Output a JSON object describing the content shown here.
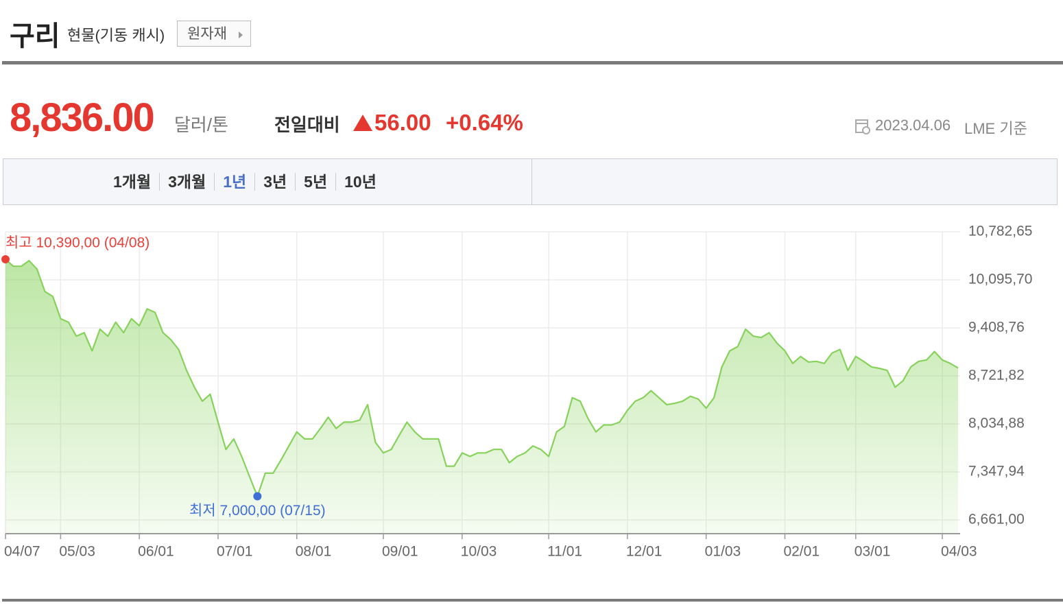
{
  "header": {
    "title": "구리",
    "subtitle": "현물(기동 캐시)",
    "button": "원자재"
  },
  "quote": {
    "price": "8,836.00",
    "unit": "달러/톤",
    "change_label": "전일대비",
    "change": "56.00",
    "change_percent": "+0.64%",
    "date": "2023.04.06",
    "source": "LME 기준"
  },
  "tabs": [
    "1개월",
    "3개월",
    "1년",
    "3년",
    "5년",
    "10년"
  ],
  "selected_tab": 2,
  "chart_data": {
    "type": "line",
    "color": "#86d25a",
    "grid": true,
    "categories": [
      "04/07",
      null,
      null,
      null,
      null,
      null,
      null,
      "05/03",
      null,
      null,
      null,
      null,
      null,
      null,
      null,
      null,
      null,
      "06/01",
      null,
      null,
      null,
      null,
      null,
      null,
      null,
      null,
      null,
      "07/01",
      null,
      null,
      null,
      null,
      null,
      null,
      null,
      null,
      null,
      "08/01",
      null,
      null,
      null,
      null,
      null,
      null,
      null,
      null,
      null,
      null,
      "09/01",
      null,
      null,
      null,
      null,
      null,
      null,
      null,
      null,
      null,
      "10/03",
      null,
      null,
      null,
      null,
      null,
      null,
      null,
      null,
      null,
      null,
      "11/01",
      null,
      null,
      null,
      null,
      null,
      null,
      null,
      null,
      null,
      "12/01",
      null,
      null,
      null,
      null,
      null,
      null,
      null,
      null,
      null,
      "01/03",
      null,
      null,
      null,
      null,
      null,
      null,
      null,
      null,
      null,
      "02/01",
      null,
      null,
      null,
      null,
      null,
      null,
      null,
      null,
      "03/01",
      null,
      null,
      null,
      null,
      null,
      null,
      null,
      null,
      null,
      null,
      "04/03",
      null,
      null
    ],
    "values": [
      10390,
      10290,
      10290,
      10370,
      10250,
      9930,
      9860,
      9540,
      9490,
      9290,
      9340,
      9080,
      9390,
      9290,
      9490,
      9340,
      9540,
      9440,
      9680,
      9630,
      9340,
      9240,
      9100,
      8800,
      8560,
      8360,
      8460,
      8060,
      7670,
      7820,
      7570,
      7280,
      7000,
      7330,
      7330,
      7520,
      7720,
      7920,
      7820,
      7820,
      7970,
      8130,
      7970,
      8060,
      8060,
      8090,
      8310,
      7770,
      7620,
      7670,
      7870,
      8060,
      7920,
      7820,
      7820,
      7820,
      7430,
      7430,
      7620,
      7570,
      7620,
      7620,
      7670,
      7670,
      7480,
      7570,
      7620,
      7720,
      7670,
      7570,
      7920,
      8000,
      8410,
      8360,
      8110,
      7920,
      8020,
      8020,
      8060,
      8230,
      8360,
      8410,
      8510,
      8410,
      8310,
      8330,
      8360,
      8430,
      8390,
      8260,
      8410,
      8850,
      9080,
      9140,
      9390,
      9290,
      9270,
      9340,
      9190,
      9080,
      8900,
      9000,
      8920,
      8930,
      8900,
      9050,
      9100,
      8800,
      9000,
      8930,
      8850,
      8830,
      8800,
      8560,
      8650,
      8850,
      8930,
      8950,
      9070,
      8950,
      8900,
      8836
    ],
    "ylim": [
      6464.73,
      10782.65
    ],
    "yticks": [
      {
        "value": 6661.0,
        "label": "6,661,00"
      },
      {
        "value": 7347.94,
        "label": "7,347,94"
      },
      {
        "value": 8034.88,
        "label": "8,034,88"
      },
      {
        "value": 8721.82,
        "label": "8,721,82"
      },
      {
        "value": 9408.76,
        "label": "9,408,76"
      },
      {
        "value": 10095.7,
        "label": "10,095,70"
      },
      {
        "value": 10782.65,
        "label": "10,782,65"
      }
    ],
    "annotations": {
      "max": "최고 10,390,00 (04/08)",
      "min": "최저 7,000,00 (07/15)"
    }
  }
}
